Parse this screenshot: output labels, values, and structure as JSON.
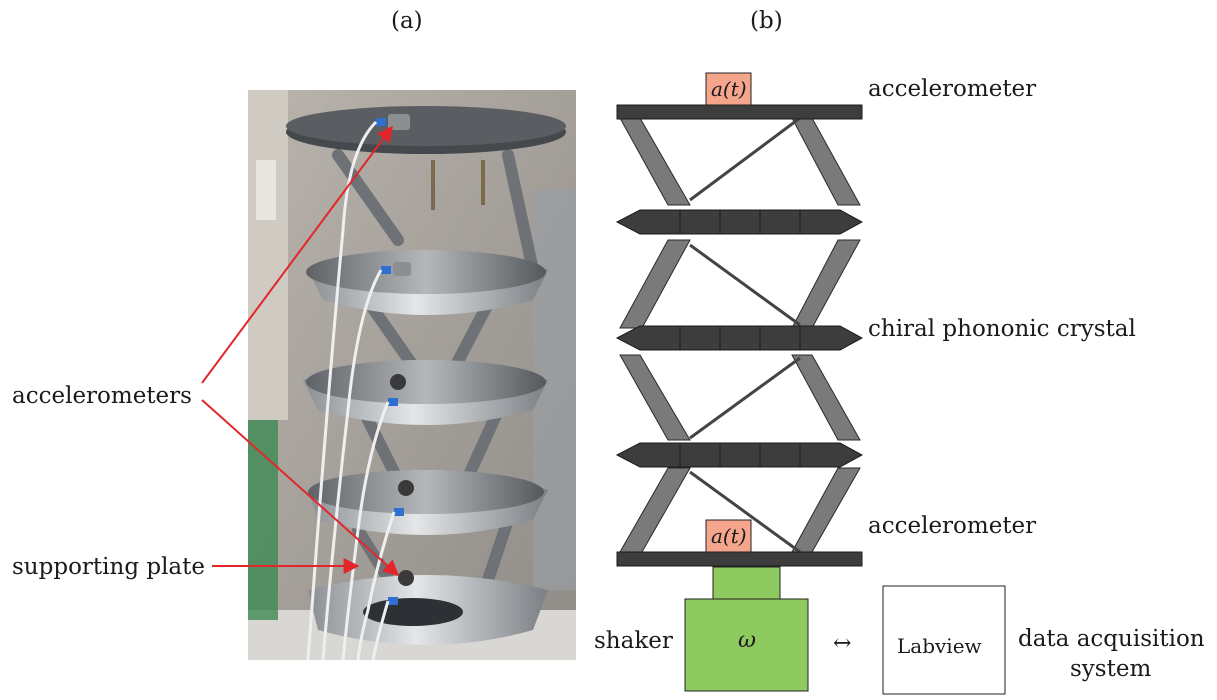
{
  "panels": {
    "a": "(a)",
    "b": "(b)"
  },
  "photo_labels": {
    "accelerometers": "accelerometers",
    "supporting_plate": "supporting plate"
  },
  "diagram_labels": {
    "accelerometer_top": "accelerometer",
    "crystal": "chiral phononic crystal",
    "accelerometer_bottom": "accelerometer",
    "sensor_top": "a(t)",
    "sensor_bottom": "a(t)",
    "shaker": "shaker",
    "omega": "ω",
    "arrow": "↔",
    "labview": "Labview",
    "daq_line1": "data acquisition",
    "daq_line2": "system"
  },
  "colors": {
    "arrow": "#e3262a",
    "sensor_fill": "#f4a58c",
    "shaker_fill": "#8fca60",
    "plate_dark": "#3d3d3d",
    "strut": "#7a7a7a"
  }
}
